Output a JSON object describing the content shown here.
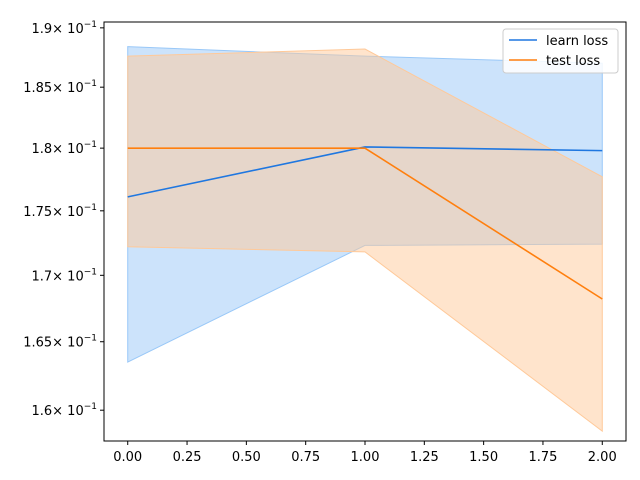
{
  "chart_data": {
    "type": "line",
    "title": "",
    "xlabel": "",
    "ylabel": "",
    "y_scale": "log",
    "grid": false,
    "legend_position": "top-right",
    "x": [
      0,
      1,
      2
    ],
    "xlim": [
      -0.1,
      2.1
    ],
    "ylim": [
      0.1578,
      0.1905
    ],
    "x_ticks": [
      0.0,
      0.25,
      0.5,
      0.75,
      1.0,
      1.25,
      1.5,
      1.75,
      2.0
    ],
    "x_tick_labels": [
      "0.00",
      "0.25",
      "0.50",
      "0.75",
      "1.00",
      "1.25",
      "1.50",
      "1.75",
      "2.00"
    ],
    "y_ticks": [
      0.16,
      0.165,
      0.17,
      0.175,
      0.18,
      0.185,
      0.19
    ],
    "y_tick_mantissas": [
      "1.6",
      "1.65",
      "1.7",
      "1.75",
      "1.8",
      "1.85",
      "1.9"
    ],
    "y_tick_base": "× 10",
    "y_tick_exponent": "−1",
    "series": [
      {
        "name": "learn loss",
        "color": "#1f77e0",
        "band_color": "#99c8f8",
        "values": [
          0.1761,
          0.1801,
          0.1798
        ],
        "lower": [
          0.1635,
          0.1723,
          0.1724
        ],
        "upper": [
          0.1884,
          0.1876,
          0.187
        ]
      },
      {
        "name": "test loss",
        "color": "#ff7f0e",
        "band_color": "#ffc999",
        "values": [
          0.18,
          0.18,
          0.1682
        ],
        "lower": [
          0.1722,
          0.1718,
          0.1585
        ],
        "upper": [
          0.1876,
          0.1882,
          0.1777
        ]
      }
    ]
  }
}
